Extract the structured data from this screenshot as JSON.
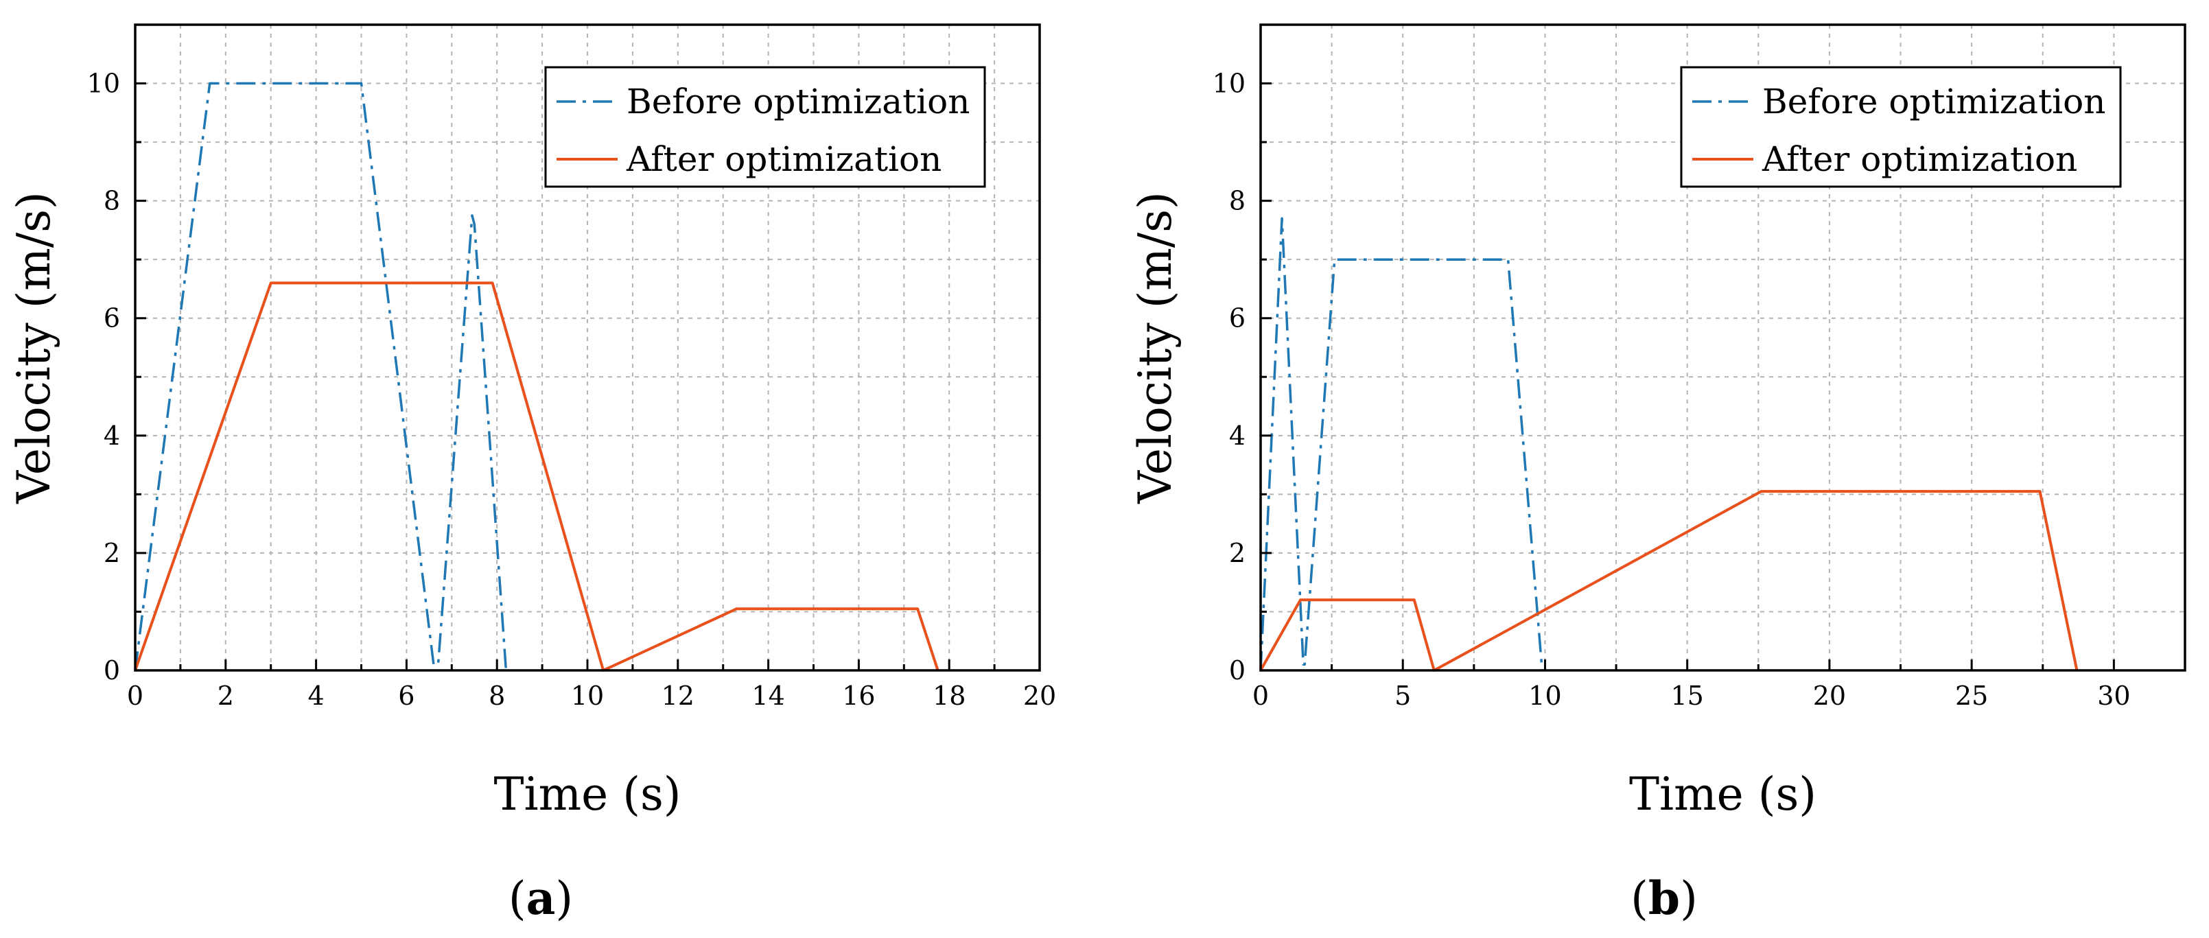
{
  "chart_data": [
    {
      "type": "line",
      "panel_label": "a",
      "xlabel": "Time (s)",
      "ylabel": "Velocity (m/s)",
      "xlim": [
        0,
        20
      ],
      "ylim": [
        0,
        11
      ],
      "xticks": [
        0,
        2,
        4,
        6,
        8,
        10,
        12,
        14,
        16,
        18,
        20
      ],
      "yticks": [
        0,
        2,
        4,
        6,
        8,
        10
      ],
      "grid": true,
      "legend_position": "top-right",
      "series": [
        {
          "name": "Before optimization",
          "style": "dash-dot",
          "color": "#1f77b4",
          "x": [
            0,
            1.65,
            5.0,
            6.6,
            6.7,
            7.45,
            7.5,
            8.2
          ],
          "y": [
            0,
            10,
            10,
            0.1,
            0.1,
            7.75,
            7.6,
            0
          ]
        },
        {
          "name": "After optimization",
          "style": "solid",
          "color": "#e8501c",
          "x": [
            0,
            3.0,
            7.9,
            10.35,
            13.3,
            17.3,
            17.75
          ],
          "y": [
            0,
            6.6,
            6.6,
            0,
            1.05,
            1.05,
            0
          ]
        }
      ]
    },
    {
      "type": "line",
      "panel_label": "b",
      "xlabel": "Time (s)",
      "ylabel": "Velocity (m/s)",
      "xlim": [
        0,
        32.5
      ],
      "ylim": [
        0,
        11
      ],
      "xticks": [
        0,
        5,
        10,
        15,
        20,
        25,
        30
      ],
      "yticks": [
        0,
        2,
        4,
        6,
        8,
        10
      ],
      "grid": true,
      "legend_position": "top-right",
      "series": [
        {
          "name": "Before optimization",
          "style": "dash-dot",
          "color": "#1f77b4",
          "x": [
            0,
            0.75,
            1.5,
            1.55,
            2.6,
            8.7,
            9.9
          ],
          "y": [
            0,
            7.7,
            0.1,
            0.1,
            7.0,
            7.0,
            0
          ]
        },
        {
          "name": "After optimization",
          "style": "solid",
          "color": "#e8501c",
          "x": [
            0,
            1.4,
            5.4,
            6.1,
            17.6,
            27.4,
            28.7
          ],
          "y": [
            0,
            1.2,
            1.2,
            0,
            3.05,
            3.05,
            0
          ]
        }
      ]
    }
  ]
}
